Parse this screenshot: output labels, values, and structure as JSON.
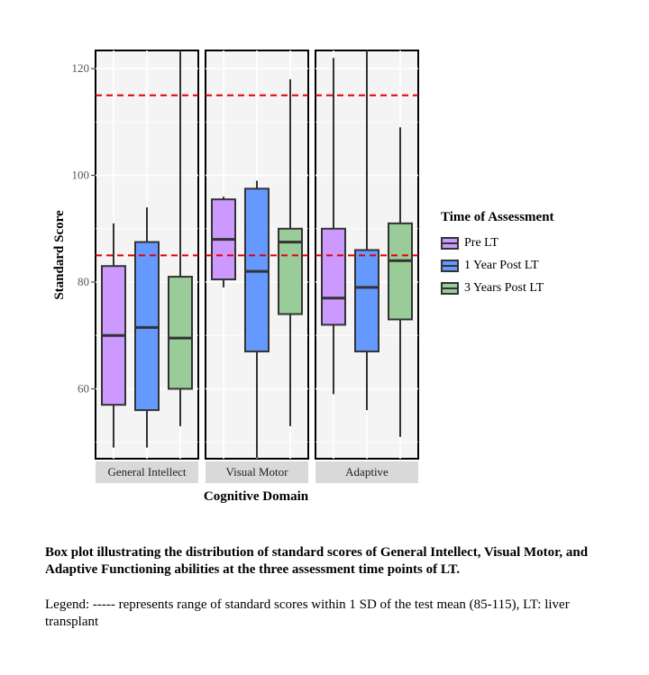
{
  "chart_data": {
    "type": "box",
    "xlabel": "Cognitive Domain",
    "ylabel": "Standard Score",
    "ylim": [
      46.9,
      123.4
    ],
    "yticks": [
      60,
      80,
      100,
      120
    ],
    "reference_lines": [
      85,
      115
    ],
    "facets": [
      "General Intellect",
      "Visual Motor",
      "Adaptive"
    ],
    "legend": {
      "title": "Time of Assessment",
      "position": "right",
      "entries": [
        "Pre LT",
        "1 Year Post LT",
        "3 Years Post LT"
      ]
    },
    "colors": [
      "#cc99ff",
      "#6699ff",
      "#99cc99"
    ],
    "ref_color": "#e00000",
    "series": [
      {
        "facet": "General Intellect",
        "group": "Pre LT",
        "min": 49,
        "q1": 57,
        "median": 70,
        "q3": 83,
        "max": 91
      },
      {
        "facet": "General Intellect",
        "group": "1 Year Post LT",
        "min": 49,
        "q1": 56,
        "median": 71.5,
        "q3": 87.5,
        "max": 94
      },
      {
        "facet": "General Intellect",
        "group": "3 Years Post LT",
        "min": 53,
        "q1": 60,
        "median": 69.5,
        "q3": 81,
        "max": 124
      },
      {
        "facet": "Visual Motor",
        "group": "Pre LT",
        "min": 79,
        "q1": 80.5,
        "median": 88,
        "q3": 95.5,
        "max": 96
      },
      {
        "facet": "Visual Motor",
        "group": "1 Year Post LT",
        "min": 47,
        "q1": 67,
        "median": 82,
        "q3": 97.5,
        "max": 99
      },
      {
        "facet": "Visual Motor",
        "group": "3 Years Post LT",
        "min": 53,
        "q1": 74,
        "median": 87.5,
        "q3": 90,
        "max": 118
      },
      {
        "facet": "Adaptive",
        "group": "Pre LT",
        "min": 59,
        "q1": 72,
        "median": 77,
        "q3": 90,
        "max": 122
      },
      {
        "facet": "Adaptive",
        "group": "1 Year Post LT",
        "min": 56,
        "q1": 67,
        "median": 79,
        "q3": 86,
        "max": 124
      },
      {
        "facet": "Adaptive",
        "group": "3 Years Post LT",
        "min": 51,
        "q1": 73,
        "median": 84,
        "q3": 91,
        "max": 109
      }
    ]
  },
  "caption": {
    "title": "Box plot illustrating the distribution of standard scores of General Intellect, Visual Motor, and Adaptive Functioning abilities at the three assessment time points of LT.",
    "legend_note": "Legend: ----- represents range of standard scores within 1 SD of the test mean (85-115), LT: liver transplant"
  }
}
